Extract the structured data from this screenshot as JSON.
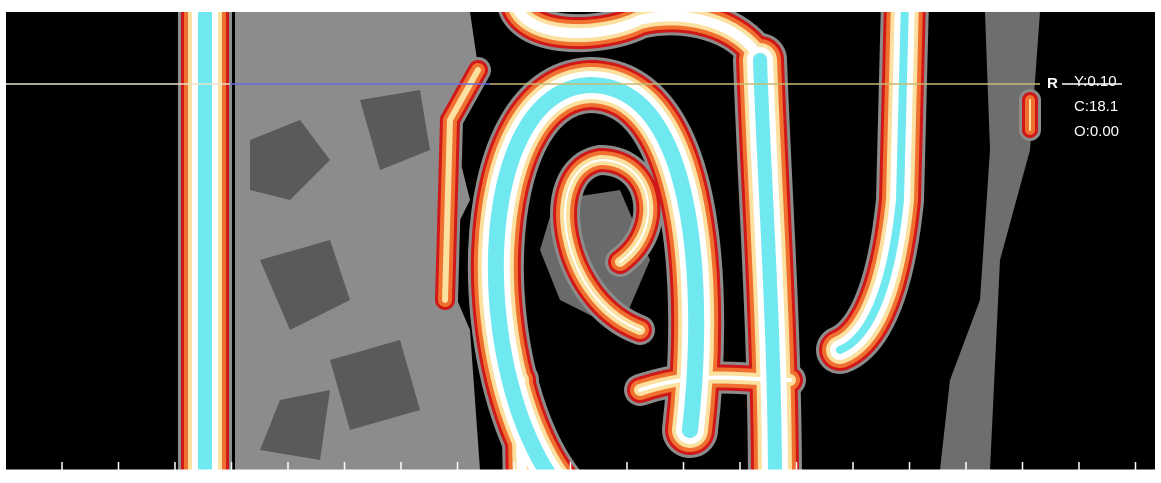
{
  "overlay": {
    "orientation": "R",
    "y": "Y:0.10",
    "c": "C:18.1",
    "o": "O:0.00"
  }
}
